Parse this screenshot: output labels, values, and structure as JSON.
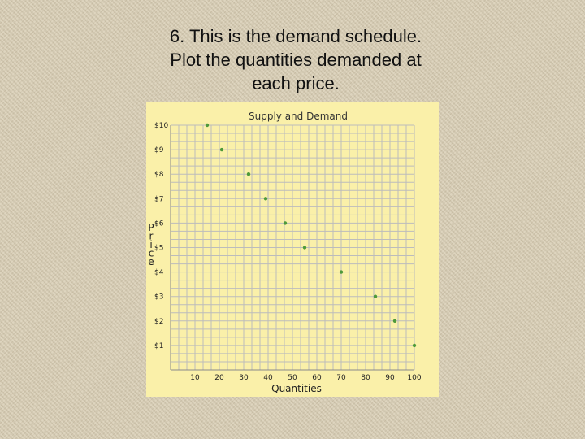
{
  "slide": {
    "title_lines": [
      "6. This is the demand schedule.",
      "Plot the quantities demanded at",
      "each price."
    ]
  },
  "chart_data": {
    "type": "scatter",
    "title": "Supply and Demand",
    "xlabel": "Quantities",
    "ylabel": "Price",
    "xlim": [
      0,
      100
    ],
    "ylim": [
      0,
      10
    ],
    "x_ticks": [
      10,
      20,
      30,
      40,
      50,
      60,
      70,
      80,
      90,
      100
    ],
    "y_ticks": [
      "$1",
      "$2",
      "$3",
      "$4",
      "$5",
      "$6",
      "$7",
      "$8",
      "$9",
      "$10"
    ],
    "grid": true,
    "series": [
      {
        "points": [
          {
            "x": 15,
            "y": 10
          },
          {
            "x": 21,
            "y": 9
          },
          {
            "x": 32,
            "y": 8
          },
          {
            "x": 39,
            "y": 7
          },
          {
            "x": 47,
            "y": 6
          },
          {
            "x": 55,
            "y": 5
          },
          {
            "x": 70,
            "y": 4
          },
          {
            "x": 84,
            "y": 3
          },
          {
            "x": 92,
            "y": 2
          },
          {
            "x": 100,
            "y": 1
          }
        ]
      }
    ],
    "colors": {
      "panel_background": "#faf0a9",
      "grid_line": "#bcbcbc",
      "point": "#4e9a3a"
    }
  }
}
